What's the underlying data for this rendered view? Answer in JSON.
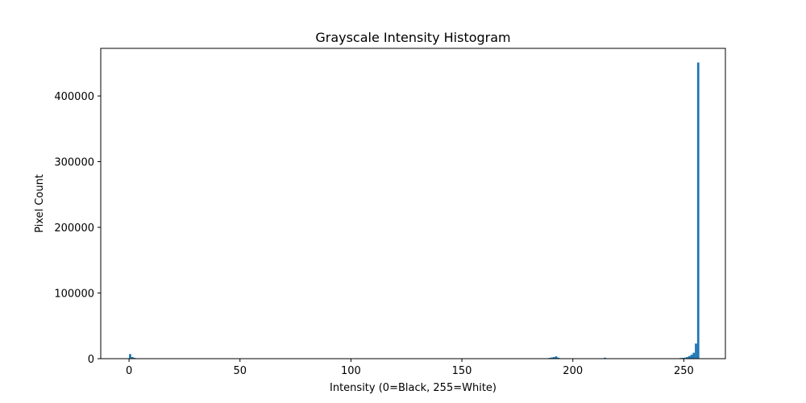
{
  "chart_data": {
    "type": "bar",
    "title": "Grayscale Intensity Histogram",
    "xlabel": "Intensity (0=Black, 255=White)",
    "ylabel": "Pixel Count",
    "xlim": [
      -12.75,
      268.75
    ],
    "ylim": [
      0,
      472500
    ],
    "xticks": [
      0,
      50,
      100,
      150,
      200,
      250
    ],
    "yticks": [
      0,
      100000,
      200000,
      300000,
      400000
    ],
    "bin_width": 1,
    "grid": false,
    "bar_color": "#1f77b4",
    "bins": [
      {
        "x": 0,
        "y": 7000
      },
      {
        "x": 1,
        "y": 2500
      },
      {
        "x": 2,
        "y": 1200
      },
      {
        "x": 189,
        "y": 1200
      },
      {
        "x": 190,
        "y": 1800
      },
      {
        "x": 191,
        "y": 2500
      },
      {
        "x": 192,
        "y": 3500
      },
      {
        "x": 193,
        "y": 1500
      },
      {
        "x": 214,
        "y": 1500
      },
      {
        "x": 248,
        "y": 1000
      },
      {
        "x": 249,
        "y": 1200
      },
      {
        "x": 250,
        "y": 1500
      },
      {
        "x": 251,
        "y": 2500
      },
      {
        "x": 252,
        "y": 4000
      },
      {
        "x": 253,
        "y": 6000
      },
      {
        "x": 254,
        "y": 9000
      },
      {
        "x": 255,
        "y": 23000
      },
      {
        "x": 256,
        "y": 451000
      }
    ]
  }
}
